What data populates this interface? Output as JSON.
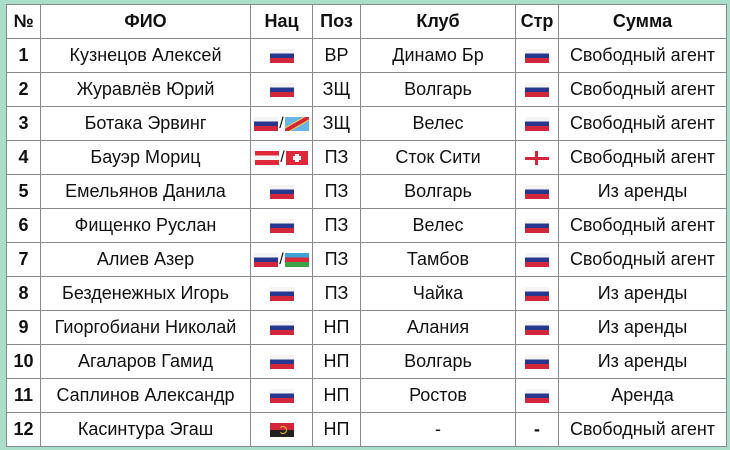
{
  "headers": [
    "№",
    "ФИО",
    "Нац",
    "Поз",
    "Клуб",
    "Стр",
    "Сумма"
  ],
  "rows": [
    {
      "num": "1",
      "name": "Кузнецов Алексей",
      "nat": [
        "russia"
      ],
      "pos": "ВР",
      "club": "Динамо Бр",
      "country": "russia",
      "sum": "Свободный агент"
    },
    {
      "num": "2",
      "name": "Журавлёв Юрий",
      "nat": [
        "russia"
      ],
      "pos": "ЗЩ",
      "club": "Волгарь",
      "country": "russia",
      "sum": "Свободный агент"
    },
    {
      "num": "3",
      "name": "Ботака Эрвинг",
      "nat": [
        "russia",
        "dr-congo"
      ],
      "pos": "ЗЩ",
      "club": "Велес",
      "country": "russia",
      "sum": "Свободный агент"
    },
    {
      "num": "4",
      "name": "Бауэр Мориц",
      "nat": [
        "austria",
        "switzerland"
      ],
      "pos": "ПЗ",
      "club": "Сток Сити",
      "country": "england",
      "sum": "Свободный агент"
    },
    {
      "num": "5",
      "name": "Емельянов Данила",
      "nat": [
        "russia"
      ],
      "pos": "ПЗ",
      "club": "Волгарь",
      "country": "russia",
      "sum": "Из аренды"
    },
    {
      "num": "6",
      "name": "Фищенко Руслан",
      "nat": [
        "russia"
      ],
      "pos": "ПЗ",
      "club": "Велес",
      "country": "russia",
      "sum": "Свободный агент"
    },
    {
      "num": "7",
      "name": "Алиев Азер",
      "nat": [
        "russia",
        "azerbaijan"
      ],
      "pos": "ПЗ",
      "club": "Тамбов",
      "country": "russia",
      "sum": "Свободный агент"
    },
    {
      "num": "8",
      "name": "Безденежных Игорь",
      "nat": [
        "russia"
      ],
      "pos": "ПЗ",
      "club": "Чайка",
      "country": "russia",
      "sum": "Из аренды"
    },
    {
      "num": "9",
      "name": "Гиоргобиани Николай",
      "nat": [
        "russia"
      ],
      "pos": "НП",
      "club": "Алания",
      "country": "russia",
      "sum": "Из аренды"
    },
    {
      "num": "10",
      "name": "Агаларов Гамид",
      "nat": [
        "russia"
      ],
      "pos": "НП",
      "club": "Волгарь",
      "country": "russia",
      "sum": "Из аренды"
    },
    {
      "num": "11",
      "name": "Саплинов Александр",
      "nat": [
        "russia"
      ],
      "pos": "НП",
      "club": "Ростов",
      "country": "russia",
      "sum": "Аренда"
    },
    {
      "num": "12",
      "name": "Касинтура Эгаш",
      "nat": [
        "angola"
      ],
      "pos": "НП",
      "club": "-",
      "country": "-",
      "sum": "Свободный агент"
    }
  ],
  "nat_separator": "/",
  "colors": {
    "border": "#a9dfc9"
  }
}
